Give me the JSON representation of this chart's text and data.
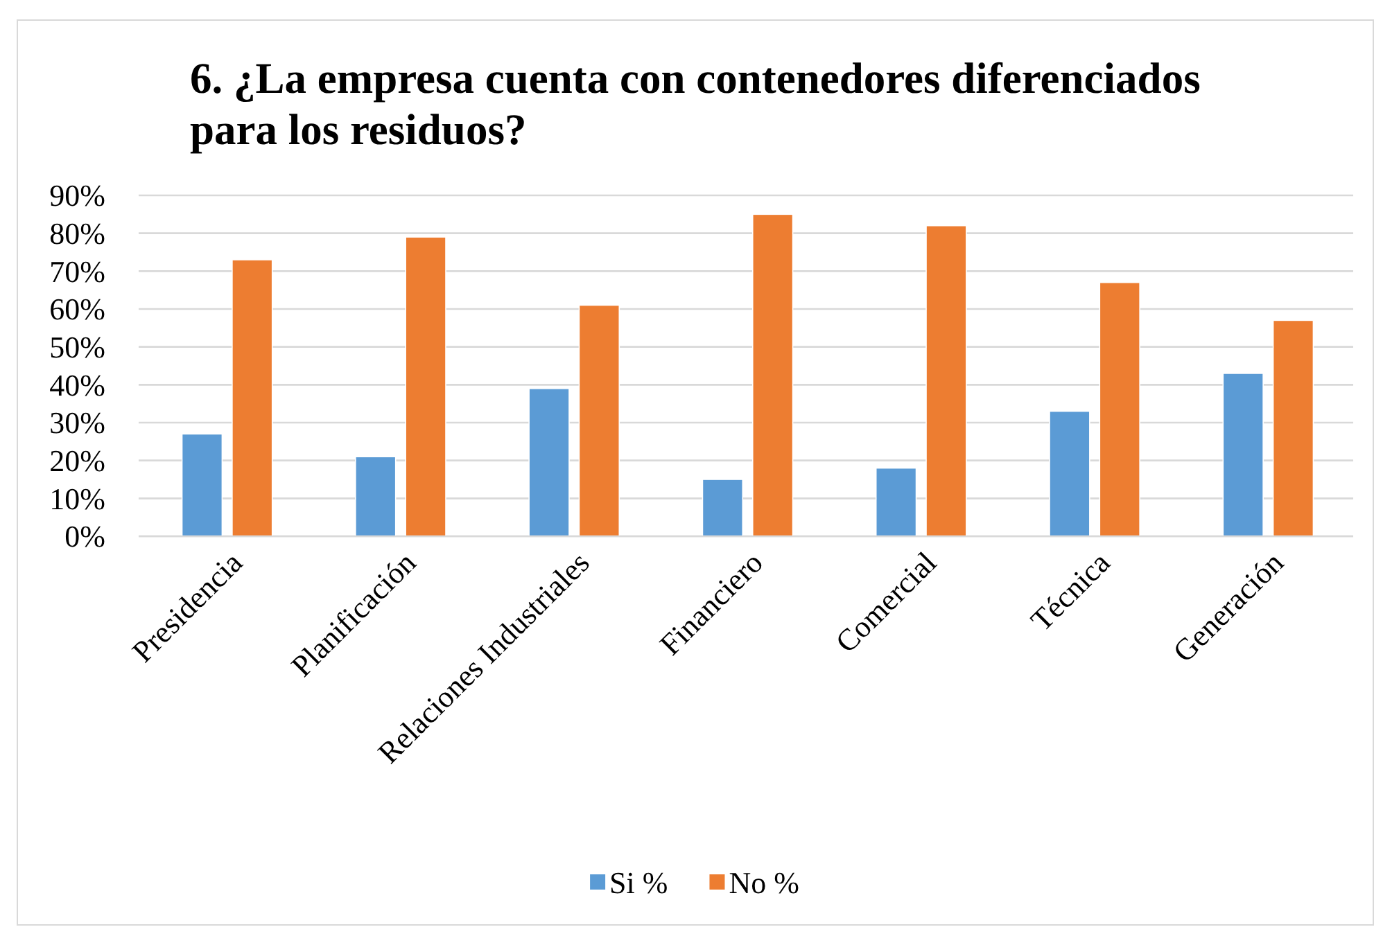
{
  "chart_data": {
    "type": "bar",
    "title": "6. ¿La empresa cuenta con contenedores diferenciados para los residuos?",
    "categories": [
      "Presidencia",
      "Planificación",
      "Relaciones Industriales",
      "Financiero",
      "Comercial",
      "Técnica",
      "Generación"
    ],
    "series": [
      {
        "name": "Si %",
        "color": "#5b9bd5",
        "values": [
          27,
          21,
          39,
          15,
          18,
          33,
          43
        ]
      },
      {
        "name": "No %",
        "color": "#ed7d31",
        "values": [
          73,
          79,
          61,
          85,
          82,
          67,
          57
        ]
      }
    ],
    "ylim": [
      0,
      90
    ],
    "yticks": [
      {
        "value": 0,
        "label": "0%"
      },
      {
        "value": 10,
        "label": "10%"
      },
      {
        "value": 20,
        "label": "20%"
      },
      {
        "value": 30,
        "label": "30%"
      },
      {
        "value": 40,
        "label": "40%"
      },
      {
        "value": 50,
        "label": "50%"
      },
      {
        "value": 60,
        "label": "60%"
      },
      {
        "value": 70,
        "label": "70%"
      },
      {
        "value": 80,
        "label": "80%"
      },
      {
        "value": 90,
        "label": "90%"
      }
    ],
    "grid": "y",
    "legend": "bottom"
  }
}
